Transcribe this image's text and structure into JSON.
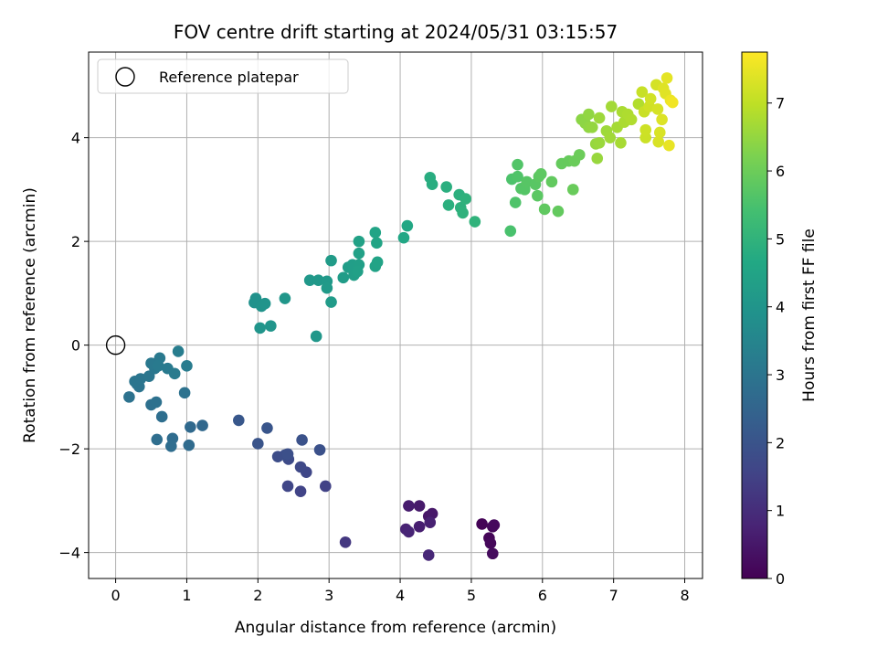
{
  "chart_data": {
    "type": "scatter",
    "title": "FOV centre drift starting at 2024/05/31 03:15:57",
    "xlabel": "Angular distance from reference (arcmin)",
    "ylabel": "Rotation from reference (arcmin)",
    "xlim": [
      -0.38,
      8.25
    ],
    "ylim": [
      -4.5,
      5.65
    ],
    "xticks": [
      0,
      1,
      2,
      3,
      4,
      5,
      6,
      7,
      8
    ],
    "yticks": [
      -4,
      -2,
      0,
      2,
      4
    ],
    "xtick_labels": [
      "0",
      "1",
      "2",
      "3",
      "4",
      "5",
      "6",
      "7",
      "8"
    ],
    "ytick_labels": [
      "−4",
      "−2",
      "0",
      "2",
      "4"
    ],
    "grid": true,
    "legend": {
      "position": "top-left",
      "entries": [
        "Reference platepar"
      ]
    },
    "reference_point": {
      "x": 0,
      "y": 0
    },
    "colorbar": {
      "label": "Hours from first FF file",
      "colormap": "viridis",
      "range": [
        0,
        7.75
      ],
      "ticks": [
        0,
        1,
        2,
        3,
        4,
        5,
        6,
        7
      ],
      "tick_labels": [
        "0",
        "1",
        "2",
        "3",
        "4",
        "5",
        "6",
        "7"
      ]
    },
    "points": [
      {
        "x": 5.15,
        "y": -3.45,
        "c": 0.05
      },
      {
        "x": 5.25,
        "y": -3.72,
        "c": 0.08
      },
      {
        "x": 5.3,
        "y": -3.5,
        "c": 0.12
      },
      {
        "x": 5.27,
        "y": -3.82,
        "c": 0.15
      },
      {
        "x": 5.32,
        "y": -3.47,
        "c": 0.18
      },
      {
        "x": 5.3,
        "y": -4.02,
        "c": 0.22
      },
      {
        "x": 4.4,
        "y": -3.3,
        "c": 0.45
      },
      {
        "x": 4.45,
        "y": -3.25,
        "c": 0.5
      },
      {
        "x": 4.27,
        "y": -3.1,
        "c": 0.55
      },
      {
        "x": 4.12,
        "y": -3.1,
        "c": 0.6
      },
      {
        "x": 4.27,
        "y": -3.5,
        "c": 0.65
      },
      {
        "x": 4.42,
        "y": -3.42,
        "c": 0.7
      },
      {
        "x": 4.08,
        "y": -3.55,
        "c": 0.75
      },
      {
        "x": 4.12,
        "y": -3.6,
        "c": 0.8
      },
      {
        "x": 4.4,
        "y": -4.05,
        "c": 0.85
      },
      {
        "x": 3.23,
        "y": -3.8,
        "c": 1.25
      },
      {
        "x": 2.95,
        "y": -2.72,
        "c": 1.5
      },
      {
        "x": 2.6,
        "y": -2.82,
        "c": 1.55
      },
      {
        "x": 2.42,
        "y": -2.72,
        "c": 1.6
      },
      {
        "x": 2.68,
        "y": -2.45,
        "c": 1.65
      },
      {
        "x": 2.6,
        "y": -2.35,
        "c": 1.7
      },
      {
        "x": 2.43,
        "y": -2.2,
        "c": 1.75
      },
      {
        "x": 2.28,
        "y": -2.15,
        "c": 1.8
      },
      {
        "x": 2.38,
        "y": -2.12,
        "c": 1.85
      },
      {
        "x": 2.42,
        "y": -2.1,
        "c": 1.9
      },
      {
        "x": 2.87,
        "y": -2.02,
        "c": 1.92
      },
      {
        "x": 2.62,
        "y": -1.83,
        "c": 1.95
      },
      {
        "x": 2.0,
        "y": -1.9,
        "c": 2.0
      },
      {
        "x": 2.13,
        "y": -1.6,
        "c": 2.05
      },
      {
        "x": 1.73,
        "y": -1.45,
        "c": 2.1
      },
      {
        "x": 1.22,
        "y": -1.55,
        "c": 2.6
      },
      {
        "x": 1.05,
        "y": -1.58,
        "c": 2.65
      },
      {
        "x": 1.03,
        "y": -1.93,
        "c": 2.7
      },
      {
        "x": 0.8,
        "y": -1.8,
        "c": 2.72
      },
      {
        "x": 0.78,
        "y": -1.95,
        "c": 2.75
      },
      {
        "x": 0.58,
        "y": -1.82,
        "c": 2.78
      },
      {
        "x": 0.65,
        "y": -1.38,
        "c": 2.8
      },
      {
        "x": 0.5,
        "y": -1.15,
        "c": 2.85
      },
      {
        "x": 0.57,
        "y": -1.1,
        "c": 2.88
      },
      {
        "x": 0.97,
        "y": -0.92,
        "c": 2.9
      },
      {
        "x": 0.19,
        "y": -1.0,
        "c": 2.92
      },
      {
        "x": 0.3,
        "y": -0.75,
        "c": 2.95
      },
      {
        "x": 0.33,
        "y": -0.8,
        "c": 2.97
      },
      {
        "x": 0.27,
        "y": -0.7,
        "c": 3.0
      },
      {
        "x": 0.35,
        "y": -0.65,
        "c": 3.02
      },
      {
        "x": 0.47,
        "y": -0.6,
        "c": 3.05
      },
      {
        "x": 0.55,
        "y": -0.45,
        "c": 3.07
      },
      {
        "x": 0.5,
        "y": -0.35,
        "c": 3.1
      },
      {
        "x": 0.62,
        "y": -0.25,
        "c": 3.12
      },
      {
        "x": 0.6,
        "y": -0.4,
        "c": 3.15
      },
      {
        "x": 0.73,
        "y": -0.45,
        "c": 3.17
      },
      {
        "x": 0.83,
        "y": -0.55,
        "c": 3.2
      },
      {
        "x": 1.0,
        "y": -0.4,
        "c": 3.22
      },
      {
        "x": 0.88,
        "y": -0.12,
        "c": 3.25
      },
      {
        "x": 1.95,
        "y": 0.82,
        "c": 3.9
      },
      {
        "x": 1.97,
        "y": 0.9,
        "c": 3.92
      },
      {
        "x": 2.05,
        "y": 0.75,
        "c": 3.95
      },
      {
        "x": 2.1,
        "y": 0.8,
        "c": 3.97
      },
      {
        "x": 2.03,
        "y": 0.33,
        "c": 4.0
      },
      {
        "x": 2.18,
        "y": 0.37,
        "c": 4.02
      },
      {
        "x": 2.38,
        "y": 0.9,
        "c": 4.05
      },
      {
        "x": 2.82,
        "y": 0.17,
        "c": 4.08
      },
      {
        "x": 2.73,
        "y": 1.25,
        "c": 4.1
      },
      {
        "x": 2.85,
        "y": 1.25,
        "c": 4.12
      },
      {
        "x": 2.97,
        "y": 1.23,
        "c": 4.15
      },
      {
        "x": 2.97,
        "y": 1.1,
        "c": 4.17
      },
      {
        "x": 3.03,
        "y": 0.83,
        "c": 4.2
      },
      {
        "x": 3.03,
        "y": 1.63,
        "c": 4.22
      },
      {
        "x": 3.2,
        "y": 1.3,
        "c": 4.25
      },
      {
        "x": 3.27,
        "y": 1.5,
        "c": 4.27
      },
      {
        "x": 3.33,
        "y": 1.55,
        "c": 4.3
      },
      {
        "x": 3.35,
        "y": 1.35,
        "c": 4.32
      },
      {
        "x": 3.42,
        "y": 1.55,
        "c": 4.35
      },
      {
        "x": 3.4,
        "y": 1.42,
        "c": 4.37
      },
      {
        "x": 3.42,
        "y": 1.77,
        "c": 4.4
      },
      {
        "x": 3.42,
        "y": 2.0,
        "c": 4.42
      },
      {
        "x": 3.65,
        "y": 1.52,
        "c": 4.45
      },
      {
        "x": 3.68,
        "y": 1.6,
        "c": 4.47
      },
      {
        "x": 3.65,
        "y": 2.17,
        "c": 4.5
      },
      {
        "x": 3.67,
        "y": 1.97,
        "c": 4.52
      },
      {
        "x": 4.05,
        "y": 2.07,
        "c": 4.6
      },
      {
        "x": 4.1,
        "y": 2.3,
        "c": 4.62
      },
      {
        "x": 4.42,
        "y": 3.23,
        "c": 4.8
      },
      {
        "x": 4.45,
        "y": 3.1,
        "c": 4.82
      },
      {
        "x": 4.65,
        "y": 3.05,
        "c": 4.85
      },
      {
        "x": 4.68,
        "y": 2.7,
        "c": 4.88
      },
      {
        "x": 4.83,
        "y": 2.9,
        "c": 4.9
      },
      {
        "x": 4.85,
        "y": 2.65,
        "c": 4.92
      },
      {
        "x": 4.88,
        "y": 2.55,
        "c": 4.95
      },
      {
        "x": 4.92,
        "y": 2.82,
        "c": 4.97
      },
      {
        "x": 5.05,
        "y": 2.38,
        "c": 5.0
      },
      {
        "x": 5.55,
        "y": 2.2,
        "c": 5.5
      },
      {
        "x": 5.57,
        "y": 3.2,
        "c": 5.55
      },
      {
        "x": 5.62,
        "y": 2.75,
        "c": 5.58
      },
      {
        "x": 5.65,
        "y": 3.25,
        "c": 5.6
      },
      {
        "x": 5.65,
        "y": 3.48,
        "c": 5.62
      },
      {
        "x": 5.7,
        "y": 3.02,
        "c": 5.65
      },
      {
        "x": 5.75,
        "y": 3.0,
        "c": 5.67
      },
      {
        "x": 5.78,
        "y": 3.15,
        "c": 5.7
      },
      {
        "x": 5.9,
        "y": 3.1,
        "c": 5.72
      },
      {
        "x": 5.93,
        "y": 2.88,
        "c": 5.75
      },
      {
        "x": 5.95,
        "y": 3.25,
        "c": 5.77
      },
      {
        "x": 5.98,
        "y": 3.3,
        "c": 5.8
      },
      {
        "x": 6.03,
        "y": 2.62,
        "c": 5.82
      },
      {
        "x": 6.13,
        "y": 3.15,
        "c": 5.85
      },
      {
        "x": 6.22,
        "y": 2.58,
        "c": 5.87
      },
      {
        "x": 6.27,
        "y": 3.5,
        "c": 5.9
      },
      {
        "x": 6.37,
        "y": 3.55,
        "c": 5.92
      },
      {
        "x": 6.43,
        "y": 3.0,
        "c": 5.95
      },
      {
        "x": 6.45,
        "y": 3.55,
        "c": 5.97
      },
      {
        "x": 6.52,
        "y": 3.67,
        "c": 6.0
      },
      {
        "x": 6.55,
        "y": 4.35,
        "c": 6.4
      },
      {
        "x": 6.6,
        "y": 4.28,
        "c": 6.42
      },
      {
        "x": 6.65,
        "y": 4.2,
        "c": 6.45
      },
      {
        "x": 6.65,
        "y": 4.45,
        "c": 6.47
      },
      {
        "x": 6.7,
        "y": 4.2,
        "c": 6.5
      },
      {
        "x": 6.75,
        "y": 3.88,
        "c": 6.52
      },
      {
        "x": 6.77,
        "y": 3.6,
        "c": 6.55
      },
      {
        "x": 6.8,
        "y": 3.9,
        "c": 6.57
      },
      {
        "x": 6.8,
        "y": 4.38,
        "c": 6.6
      },
      {
        "x": 6.9,
        "y": 4.13,
        "c": 6.62
      },
      {
        "x": 6.95,
        "y": 4.0,
        "c": 6.65
      },
      {
        "x": 6.97,
        "y": 4.6,
        "c": 6.67
      },
      {
        "x": 7.05,
        "y": 4.2,
        "c": 6.7
      },
      {
        "x": 7.1,
        "y": 3.9,
        "c": 6.72
      },
      {
        "x": 7.12,
        "y": 4.5,
        "c": 6.75
      },
      {
        "x": 7.15,
        "y": 4.3,
        "c": 6.77
      },
      {
        "x": 7.2,
        "y": 4.45,
        "c": 6.8
      },
      {
        "x": 7.25,
        "y": 4.35,
        "c": 6.82
      },
      {
        "x": 7.35,
        "y": 4.65,
        "c": 6.85
      },
      {
        "x": 7.4,
        "y": 4.88,
        "c": 7.1
      },
      {
        "x": 7.43,
        "y": 4.5,
        "c": 7.12
      },
      {
        "x": 7.45,
        "y": 4.0,
        "c": 7.15
      },
      {
        "x": 7.45,
        "y": 4.15,
        "c": 7.17
      },
      {
        "x": 7.5,
        "y": 4.6,
        "c": 7.2
      },
      {
        "x": 7.52,
        "y": 4.75,
        "c": 7.22
      },
      {
        "x": 7.6,
        "y": 5.02,
        "c": 7.25
      },
      {
        "x": 7.62,
        "y": 4.55,
        "c": 7.27
      },
      {
        "x": 7.63,
        "y": 3.92,
        "c": 7.3
      },
      {
        "x": 7.65,
        "y": 4.1,
        "c": 7.32
      },
      {
        "x": 7.68,
        "y": 4.35,
        "c": 7.35
      },
      {
        "x": 7.7,
        "y": 4.95,
        "c": 7.37
      },
      {
        "x": 7.73,
        "y": 4.85,
        "c": 7.4
      },
      {
        "x": 7.75,
        "y": 5.15,
        "c": 7.45
      },
      {
        "x": 7.78,
        "y": 3.85,
        "c": 7.5
      },
      {
        "x": 7.8,
        "y": 4.72,
        "c": 7.55
      },
      {
        "x": 7.83,
        "y": 4.68,
        "c": 7.6
      }
    ]
  }
}
